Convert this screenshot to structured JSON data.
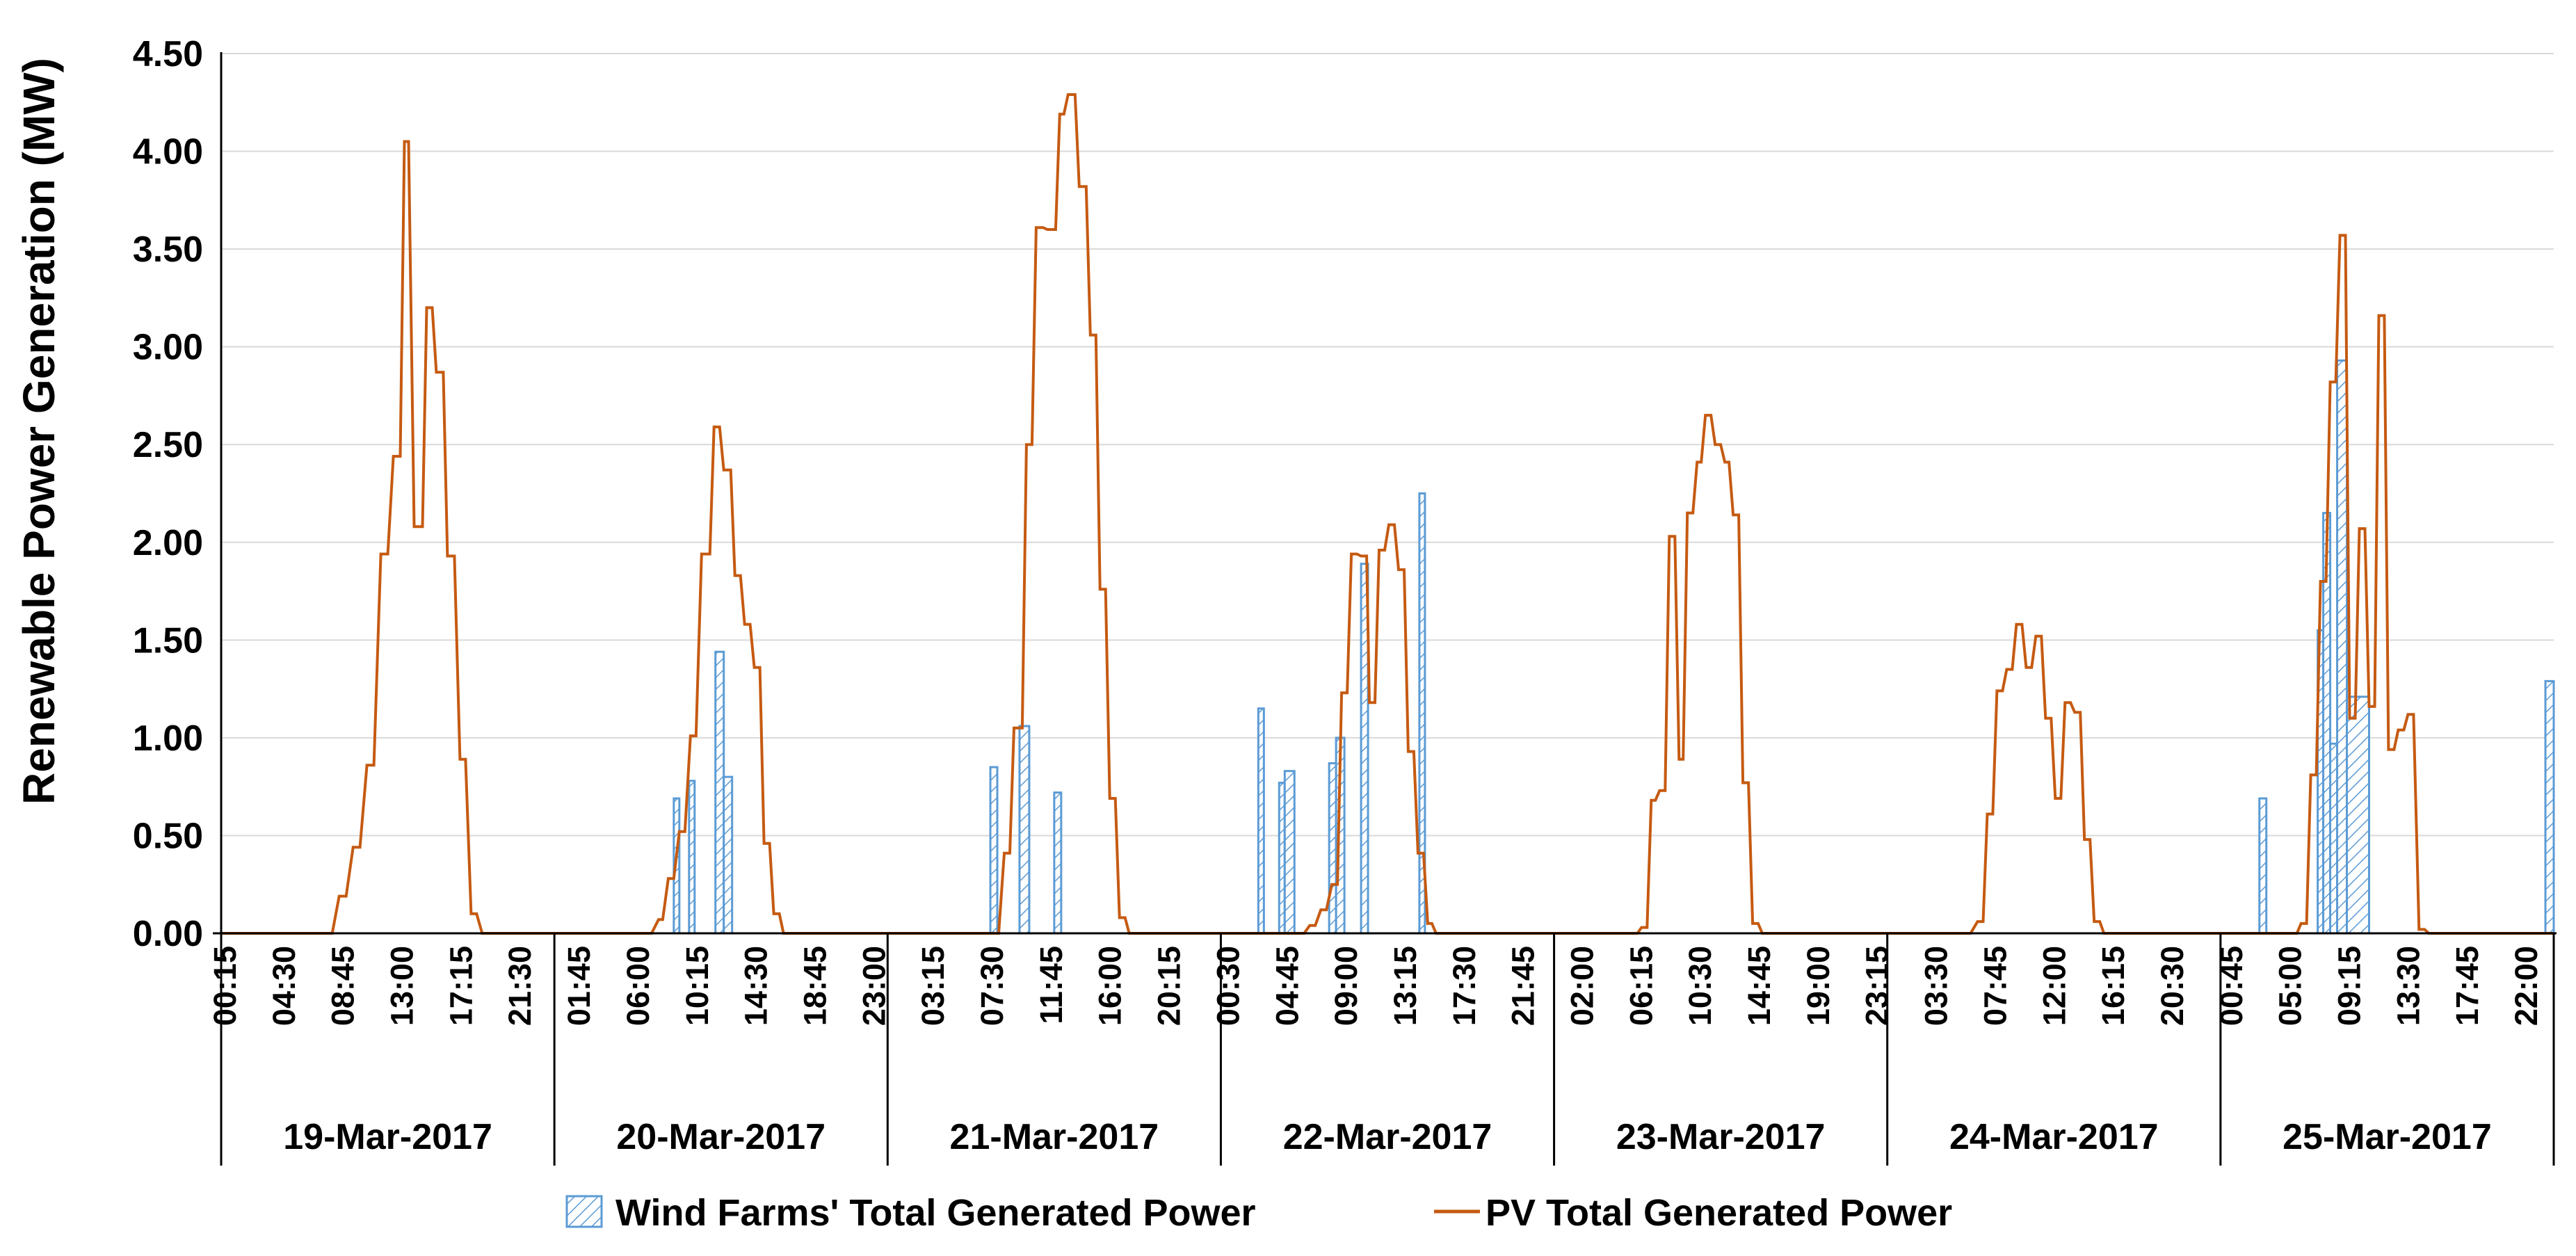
{
  "colors": {
    "wind": "#5b9bd5",
    "pv": "#c55a11",
    "grid": "#d9d9d9",
    "axis": "#000000"
  },
  "chart_data": {
    "type": "area+line",
    "title": "",
    "ylabel": "Renewable  Power Generation (MW)",
    "xlabel": "",
    "ylim": [
      0,
      4.5
    ],
    "yticks": [
      "0.00",
      "0.50",
      "1.00",
      "1.50",
      "2.00",
      "2.50",
      "3.00",
      "3.50",
      "4.00",
      "4.50"
    ],
    "grid": "horizontal",
    "legend_position": "bottom",
    "legend": [
      "Wind Farms' Total Generated Power",
      "PV Total Generated Power"
    ],
    "days": [
      {
        "label": "19-Mar-2017",
        "ticks": [
          "00:15",
          "04:30",
          "08:45",
          "13:00",
          "17:15",
          "21:30"
        ]
      },
      {
        "label": "20-Mar-2017",
        "ticks": [
          "01:45",
          "06:00",
          "10:15",
          "14:30",
          "18:45",
          "23:00"
        ]
      },
      {
        "label": "21-Mar-2017",
        "ticks": [
          "03:15",
          "07:30",
          "11:45",
          "16:00",
          "20:15"
        ]
      },
      {
        "label": "22-Mar-2017",
        "ticks": [
          "00:30",
          "04:45",
          "09:00",
          "13:15",
          "17:30",
          "21:45"
        ]
      },
      {
        "label": "23-Mar-2017",
        "ticks": [
          "02:00",
          "06:15",
          "10:30",
          "14:45",
          "19:00",
          "23:15"
        ]
      },
      {
        "label": "24-Mar-2017",
        "ticks": [
          "03:30",
          "07:45",
          "12:00",
          "16:15",
          "20:30"
        ]
      },
      {
        "label": "25-Mar-2017",
        "ticks": [
          "00:45",
          "05:00",
          "09:15",
          "13:30",
          "17:45",
          "22:00"
        ]
      }
    ],
    "series": [
      {
        "name": "PV Total Generated Power",
        "style": "step-line",
        "points": [
          [
            0,
            0
          ],
          [
            8,
            0
          ],
          [
            8.5,
            0.19
          ],
          [
            9,
            0.19
          ],
          [
            9.5,
            0.44
          ],
          [
            10,
            0.44
          ],
          [
            10.5,
            0.86
          ],
          [
            11,
            0.86
          ],
          [
            11.5,
            1.94
          ],
          [
            12,
            1.94
          ],
          [
            12.4,
            2.44
          ],
          [
            12.9,
            2.44
          ],
          [
            13.2,
            4.05
          ],
          [
            13.5,
            4.05
          ],
          [
            13.9,
            2.08
          ],
          [
            14.5,
            2.08
          ],
          [
            14.8,
            3.2
          ],
          [
            15.2,
            3.2
          ],
          [
            15.5,
            2.87
          ],
          [
            16,
            2.87
          ],
          [
            16.3,
            1.93
          ],
          [
            16.8,
            1.93
          ],
          [
            17.2,
            0.89
          ],
          [
            17.6,
            0.89
          ],
          [
            18,
            0.1
          ],
          [
            18.4,
            0.1
          ],
          [
            18.8,
            0
          ],
          [
            24,
            0
          ],
          [
            31,
            0
          ],
          [
            31.5,
            0.07
          ],
          [
            31.8,
            0.07
          ],
          [
            32.2,
            0.28
          ],
          [
            32.6,
            0.28
          ],
          [
            33,
            0.52
          ],
          [
            33.4,
            0.52
          ],
          [
            33.8,
            1.01
          ],
          [
            34.2,
            1.01
          ],
          [
            34.6,
            1.94
          ],
          [
            35.2,
            1.94
          ],
          [
            35.5,
            2.59
          ],
          [
            35.9,
            2.59
          ],
          [
            36.2,
            2.37
          ],
          [
            36.7,
            2.37
          ],
          [
            37,
            1.83
          ],
          [
            37.4,
            1.83
          ],
          [
            37.7,
            1.58
          ],
          [
            38.1,
            1.58
          ],
          [
            38.4,
            1.36
          ],
          [
            38.8,
            1.36
          ],
          [
            39.1,
            0.46
          ],
          [
            39.5,
            0.46
          ],
          [
            39.8,
            0.1
          ],
          [
            40.2,
            0.1
          ],
          [
            40.5,
            0
          ],
          [
            48,
            0
          ],
          [
            56,
            0
          ],
          [
            56.4,
            0.41
          ],
          [
            56.8,
            0.41
          ],
          [
            57.1,
            1.05
          ],
          [
            57.7,
            1.05
          ],
          [
            58,
            2.5
          ],
          [
            58.4,
            2.5
          ],
          [
            58.7,
            3.61
          ],
          [
            59.2,
            3.61
          ],
          [
            59.5,
            3.6
          ],
          [
            60.1,
            3.6
          ],
          [
            60.4,
            4.19
          ],
          [
            60.7,
            4.19
          ],
          [
            61,
            4.29
          ],
          [
            61.5,
            4.29
          ],
          [
            61.8,
            3.82
          ],
          [
            62.3,
            3.82
          ],
          [
            62.6,
            3.06
          ],
          [
            63,
            3.06
          ],
          [
            63.3,
            1.76
          ],
          [
            63.7,
            1.76
          ],
          [
            64,
            0.69
          ],
          [
            64.4,
            0.69
          ],
          [
            64.7,
            0.08
          ],
          [
            65.1,
            0.08
          ],
          [
            65.4,
            0
          ],
          [
            72,
            0
          ],
          [
            78,
            0
          ],
          [
            78.4,
            0.04
          ],
          [
            78.8,
            0.04
          ],
          [
            79.2,
            0.12
          ],
          [
            79.6,
            0.12
          ],
          [
            80,
            0.25
          ],
          [
            80.4,
            0.25
          ],
          [
            80.7,
            1.23
          ],
          [
            81.1,
            1.23
          ],
          [
            81.4,
            1.94
          ],
          [
            81.8,
            1.94
          ],
          [
            82.1,
            1.93
          ],
          [
            82.5,
            1.93
          ],
          [
            82.7,
            1.18
          ],
          [
            83.1,
            1.18
          ],
          [
            83.4,
            1.96
          ],
          [
            83.8,
            1.96
          ],
          [
            84.1,
            2.09
          ],
          [
            84.5,
            2.09
          ],
          [
            84.8,
            1.86
          ],
          [
            85.2,
            1.86
          ],
          [
            85.5,
            0.93
          ],
          [
            85.9,
            0.93
          ],
          [
            86.2,
            0.41
          ],
          [
            86.6,
            0.41
          ],
          [
            86.9,
            0.05
          ],
          [
            87.2,
            0.05
          ],
          [
            87.5,
            0
          ],
          [
            96,
            0
          ],
          [
            102,
            0
          ],
          [
            102.3,
            0.03
          ],
          [
            102.7,
            0.03
          ],
          [
            103,
            0.68
          ],
          [
            103.3,
            0.68
          ],
          [
            103.6,
            0.73
          ],
          [
            104,
            0.73
          ],
          [
            104.3,
            2.03
          ],
          [
            104.7,
            2.03
          ],
          [
            105,
            0.89
          ],
          [
            105.3,
            0.89
          ],
          [
            105.6,
            2.15
          ],
          [
            106,
            2.15
          ],
          [
            106.3,
            2.41
          ],
          [
            106.6,
            2.41
          ],
          [
            106.9,
            2.65
          ],
          [
            107.3,
            2.65
          ],
          [
            107.6,
            2.5
          ],
          [
            108,
            2.5
          ],
          [
            108.3,
            2.41
          ],
          [
            108.6,
            2.41
          ],
          [
            108.9,
            2.14
          ],
          [
            109.3,
            2.14
          ],
          [
            109.6,
            0.77
          ],
          [
            110,
            0.77
          ],
          [
            110.3,
            0.05
          ],
          [
            110.7,
            0.05
          ],
          [
            111,
            0
          ],
          [
            120,
            0
          ],
          [
            126,
            0
          ],
          [
            126.5,
            0.06
          ],
          [
            126.9,
            0.06
          ],
          [
            127.2,
            0.61
          ],
          [
            127.6,
            0.61
          ],
          [
            127.9,
            1.24
          ],
          [
            128.3,
            1.24
          ],
          [
            128.6,
            1.35
          ],
          [
            129,
            1.35
          ],
          [
            129.3,
            1.58
          ],
          [
            129.7,
            1.58
          ],
          [
            130,
            1.36
          ],
          [
            130.4,
            1.36
          ],
          [
            130.7,
            1.52
          ],
          [
            131.1,
            1.52
          ],
          [
            131.4,
            1.1
          ],
          [
            131.8,
            1.1
          ],
          [
            132.1,
            0.69
          ],
          [
            132.5,
            0.69
          ],
          [
            132.8,
            1.18
          ],
          [
            133.2,
            1.18
          ],
          [
            133.5,
            1.13
          ],
          [
            133.9,
            1.13
          ],
          [
            134.2,
            0.48
          ],
          [
            134.6,
            0.48
          ],
          [
            134.9,
            0.06
          ],
          [
            135.3,
            0.06
          ],
          [
            135.6,
            0
          ],
          [
            144,
            0
          ],
          [
            149.5,
            0
          ],
          [
            149.8,
            0.05
          ],
          [
            150.2,
            0.05
          ],
          [
            150.5,
            0.81
          ],
          [
            150.9,
            0.81
          ],
          [
            151.2,
            1.8
          ],
          [
            151.6,
            1.8
          ],
          [
            151.9,
            2.82
          ],
          [
            152.3,
            2.82
          ],
          [
            152.6,
            3.57
          ],
          [
            153,
            3.57
          ],
          [
            153.3,
            1.1
          ],
          [
            153.7,
            1.1
          ],
          [
            154,
            2.07
          ],
          [
            154.4,
            2.07
          ],
          [
            154.7,
            1.16
          ],
          [
            155.1,
            1.16
          ],
          [
            155.4,
            3.16
          ],
          [
            155.8,
            3.16
          ],
          [
            156.1,
            0.94
          ],
          [
            156.5,
            0.94
          ],
          [
            156.8,
            1.04
          ],
          [
            157.2,
            1.04
          ],
          [
            157.5,
            1.12
          ],
          [
            157.9,
            1.12
          ],
          [
            158.3,
            0.02
          ],
          [
            158.7,
            0.02
          ],
          [
            159,
            0
          ],
          [
            168,
            0
          ]
        ]
      },
      {
        "name": "Wind Farms' Total Generated Power",
        "style": "hatched-step-area",
        "pulses": [
          {
            "x0": 32.6,
            "x1": 33.0,
            "y": 0.69
          },
          {
            "x0": 33.7,
            "x1": 34.1,
            "y": 0.78
          },
          {
            "x0": 35.6,
            "x1": 36.2,
            "y": 1.44
          },
          {
            "x0": 36.2,
            "x1": 36.8,
            "y": 0.8
          },
          {
            "x0": 55.4,
            "x1": 55.9,
            "y": 0.85
          },
          {
            "x0": 57.5,
            "x1": 58.2,
            "y": 1.06
          },
          {
            "x0": 60.0,
            "x1": 60.5,
            "y": 0.72
          },
          {
            "x0": 74.7,
            "x1": 75.1,
            "y": 1.15
          },
          {
            "x0": 76.2,
            "x1": 76.6,
            "y": 0.77
          },
          {
            "x0": 76.6,
            "x1": 77.3,
            "y": 0.83
          },
          {
            "x0": 79.8,
            "x1": 80.3,
            "y": 0.87
          },
          {
            "x0": 80.3,
            "x1": 80.9,
            "y": 1.0
          },
          {
            "x0": 82.1,
            "x1": 82.6,
            "y": 1.89
          },
          {
            "x0": 86.3,
            "x1": 86.7,
            "y": 2.25
          },
          {
            "x0": 146.8,
            "x1": 147.3,
            "y": 0.69
          },
          {
            "x0": 151.0,
            "x1": 151.4,
            "y": 1.55
          },
          {
            "x0": 151.4,
            "x1": 151.9,
            "y": 2.15
          },
          {
            "x0": 151.9,
            "x1": 152.4,
            "y": 0.97
          },
          {
            "x0": 152.4,
            "x1": 153.1,
            "y": 2.93
          },
          {
            "x0": 153.1,
            "x1": 154.7,
            "y": 1.21
          },
          {
            "x0": 167.4,
            "x1": 168.0,
            "y": 1.29
          }
        ]
      }
    ]
  }
}
